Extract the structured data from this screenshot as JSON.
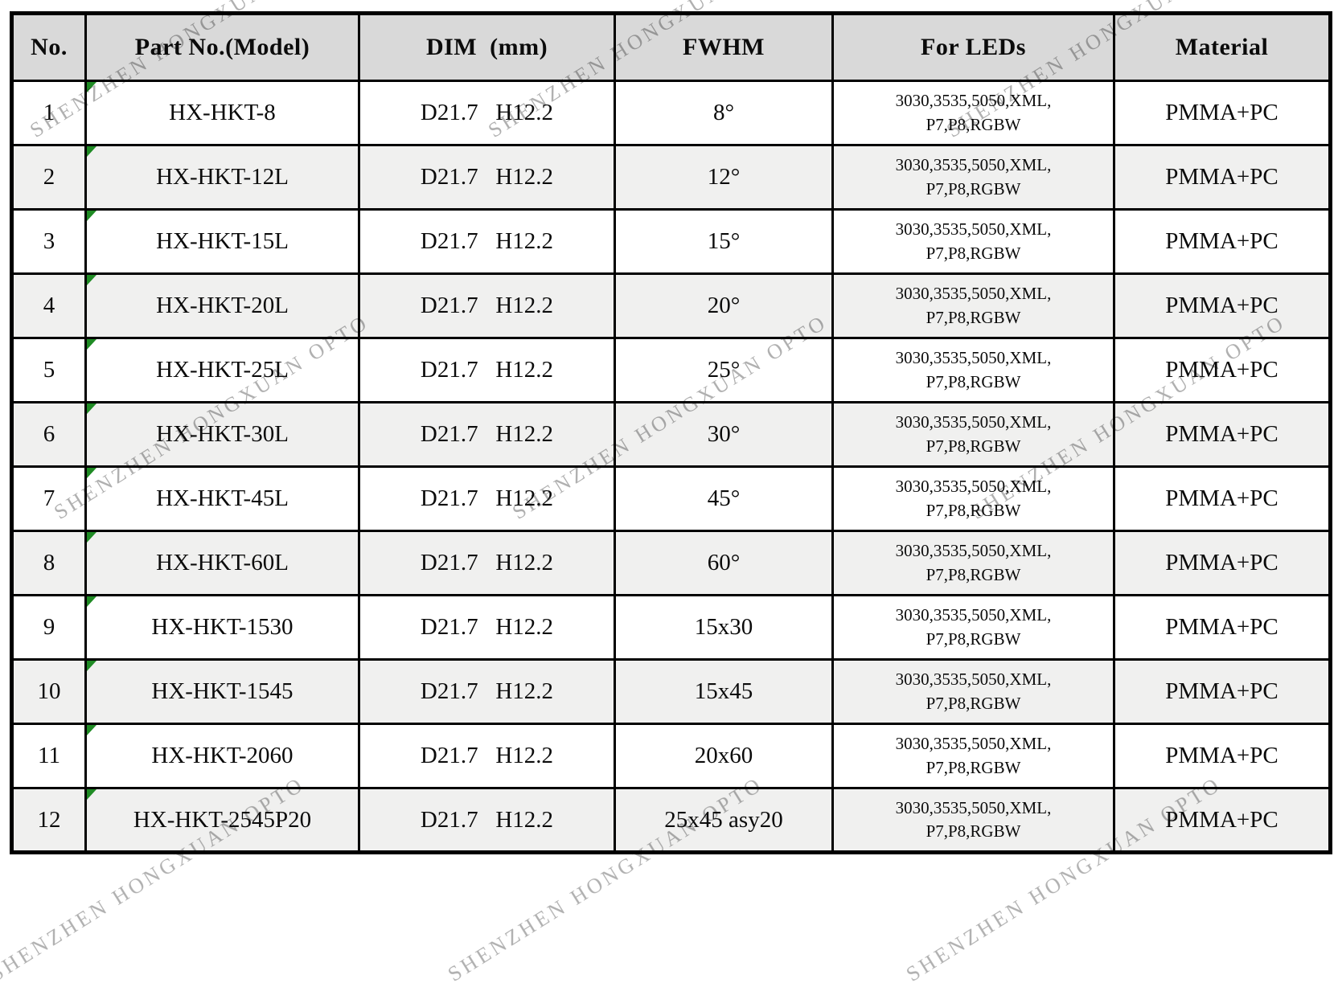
{
  "watermark": {
    "text": "SHENZHEN HONGXUAN OPTO"
  },
  "colors": {
    "header_bg": "#d9d9d9",
    "row_bg": "#ffffff",
    "row_alt_bg": "#f0f0ef",
    "border": "#000000",
    "text": "#0b0b0b",
    "marker_green": "#1f8b24",
    "watermark": "#b0b0b0",
    "page_bg": "#ffffff"
  },
  "table": {
    "columns": [
      {
        "label": "No."
      },
      {
        "label": "Part No.(Model)"
      },
      {
        "label": "DIM  (mm)"
      },
      {
        "label": "FWHM"
      },
      {
        "label": "For LEDs"
      },
      {
        "label": "Material"
      }
    ],
    "rows": [
      {
        "no": "1",
        "part": "HX-HKT-8",
        "dim": "D21.7   H12.2",
        "fwhm": "8°",
        "leds": "3030,3535,5050,XML,\nP7,P8,RGBW",
        "material": "PMMA+PC"
      },
      {
        "no": "2",
        "part": "HX-HKT-12L",
        "dim": "D21.7   H12.2",
        "fwhm": "12°",
        "leds": "3030,3535,5050,XML,\nP7,P8,RGBW",
        "material": "PMMA+PC"
      },
      {
        "no": "3",
        "part": "HX-HKT-15L",
        "dim": "D21.7   H12.2",
        "fwhm": "15°",
        "leds": "3030,3535,5050,XML,\nP7,P8,RGBW",
        "material": "PMMA+PC"
      },
      {
        "no": "4",
        "part": "HX-HKT-20L",
        "dim": "D21.7   H12.2",
        "fwhm": "20°",
        "leds": "3030,3535,5050,XML,\nP7,P8,RGBW",
        "material": "PMMA+PC"
      },
      {
        "no": "5",
        "part": "HX-HKT-25L",
        "dim": "D21.7   H12.2",
        "fwhm": "25°",
        "leds": "3030,3535,5050,XML,\nP7,P8,RGBW",
        "material": "PMMA+PC"
      },
      {
        "no": "6",
        "part": "HX-HKT-30L",
        "dim": "D21.7   H12.2",
        "fwhm": "30°",
        "leds": "3030,3535,5050,XML,\nP7,P8,RGBW",
        "material": "PMMA+PC"
      },
      {
        "no": "7",
        "part": "HX-HKT-45L",
        "dim": "D21.7   H12.2",
        "fwhm": "45°",
        "leds": "3030,3535,5050,XML,\nP7,P8,RGBW",
        "material": "PMMA+PC"
      },
      {
        "no": "8",
        "part": "HX-HKT-60L",
        "dim": "D21.7   H12.2",
        "fwhm": "60°",
        "leds": "3030,3535,5050,XML,\nP7,P8,RGBW",
        "material": "PMMA+PC"
      },
      {
        "no": "9",
        "part": "HX-HKT-1530",
        "dim": "D21.7   H12.2",
        "fwhm": "15x30",
        "leds": "3030,3535,5050,XML,\nP7,P8,RGBW",
        "material": "PMMA+PC"
      },
      {
        "no": "10",
        "part": "HX-HKT-1545",
        "dim": "D21.7   H12.2",
        "fwhm": "15x45",
        "leds": "3030,3535,5050,XML,\nP7,P8,RGBW",
        "material": "PMMA+PC"
      },
      {
        "no": "11",
        "part": "HX-HKT-2060",
        "dim": "D21.7   H12.2",
        "fwhm": "20x60",
        "leds": "3030,3535,5050,XML,\nP7,P8,RGBW",
        "material": "PMMA+PC"
      },
      {
        "no": "12",
        "part": "HX-HKT-2545P20",
        "dim": "D21.7   H12.2",
        "fwhm": "25x45 asy20",
        "leds": "3030,3535,5050,XML,\nP7,P8,RGBW",
        "material": "PMMA+PC"
      }
    ]
  }
}
